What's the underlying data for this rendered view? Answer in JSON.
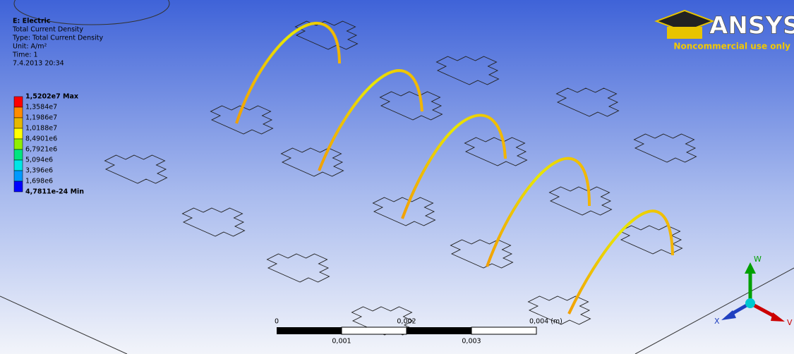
{
  "result_info": {
    "title": "E: Electric",
    "lines": [
      "Total Current Density",
      "Type: Total Current Density",
      "Unit: A/m²",
      "Time: 1",
      "7.4.2013 20:34"
    ]
  },
  "legend": {
    "levels": [
      {
        "label": "1,5202e7 Max",
        "color": "#ff0000"
      },
      {
        "label": "1,3584e7",
        "color": "#ff8c00"
      },
      {
        "label": "1,1986e7",
        "color": "#e6b800"
      },
      {
        "label": "1,0188e7",
        "color": "#ffff00"
      },
      {
        "label": "8,4901e6",
        "color": "#90ee00"
      },
      {
        "label": "6,7921e6",
        "color": "#00e680"
      },
      {
        "label": "5,094e6",
        "color": "#00e6e6"
      },
      {
        "label": "3,396e6",
        "color": "#0099ff"
      },
      {
        "label": "1,698e6",
        "color": "#0000ff"
      },
      {
        "label": "4,7811e-24 Min",
        "color": null
      }
    ]
  },
  "logo": {
    "name": "ANSYS",
    "note": "Noncommercial use only"
  },
  "scale_bar": {
    "top_labels": [
      "0",
      "0,002",
      "0,004 (m)"
    ],
    "bottom_labels": [
      "0,001",
      "0,003"
    ]
  },
  "triad": {
    "up": "W",
    "left": "X",
    "right": "V"
  }
}
